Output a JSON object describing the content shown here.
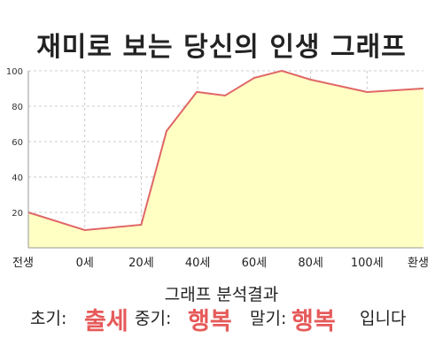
{
  "title": "재미로 보는 당신의 인생 그래프",
  "chart_data": {
    "type": "area",
    "x_labels": [
      "전생",
      "0세",
      "20세",
      "40세",
      "60세",
      "80세",
      "100세",
      "환생"
    ],
    "y_ticks": [
      20,
      40,
      60,
      80,
      100
    ],
    "ylim": [
      0,
      100
    ],
    "grid": true,
    "series": [
      {
        "points": [
          {
            "x": "전생",
            "y": 20
          },
          {
            "x": "0세",
            "y": 10
          },
          {
            "x": "20세",
            "y": 13
          },
          {
            "x": "40세",
            "y": 88
          },
          {
            "x": "60세",
            "y": 96
          },
          {
            "x": "80세",
            "y": 95
          },
          {
            "x": "100세",
            "y": 88
          },
          {
            "x": "환생",
            "y": 90
          }
        ],
        "line_color": "#e06666",
        "fill_color": "#ffffc4"
      }
    ]
  },
  "analysis": {
    "title": "그래프 분석결과",
    "early_label": "초기:",
    "early_value": "출세",
    "middle_label": "중기:",
    "middle_value": "행복",
    "late_label": "말기:",
    "late_value": "행복",
    "ending": "입니다"
  }
}
